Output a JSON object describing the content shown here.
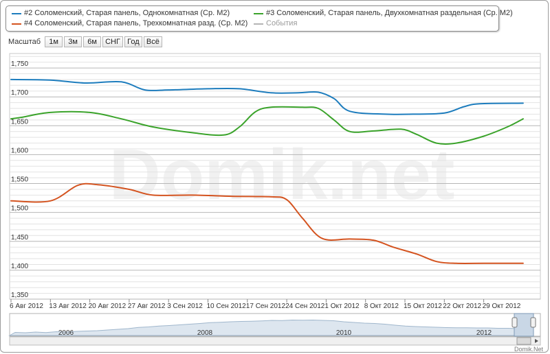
{
  "legend": {
    "items": [
      {
        "label": "#2 Соломенский, Старая панель, Однокомнатная (Ср. М2)",
        "color": "#1c7cbd"
      },
      {
        "label": "#3 Соломенский, Старая панель, Двухкомнатная раздельная (Ср. М2)",
        "color": "#3aa32a"
      },
      {
        "label": "#4 Соломенский, Старая панель, Трехкомнатная разд. (Ср. М2)",
        "color": "#d4531f"
      },
      {
        "label": "События",
        "color": "#b4b4b4"
      }
    ]
  },
  "zoom": {
    "label": "Масштаб",
    "buttons": [
      "1м",
      "3м",
      "6м",
      "СНГ",
      "Год",
      "Всё"
    ]
  },
  "watermark": "Domik.net",
  "credit": "Domik.Net",
  "navigator": {
    "years": [
      "2006",
      "2008",
      "2010",
      "2012"
    ]
  },
  "chart_data": {
    "type": "line",
    "x": [
      "6 Авг 2012",
      "13 Авг 2012",
      "20 Авг 2012",
      "27 Авг 2012",
      "3 Сен 2012",
      "10 Сен 2012",
      "17 Сен 2012",
      "24 Сен 2012",
      "1 Окт 2012",
      "8 Окт 2012",
      "15 Окт 2012",
      "22 Окт 2012",
      "29 Окт 2012"
    ],
    "ylim": [
      1350,
      1775
    ],
    "yticks": [
      1350,
      1400,
      1450,
      1500,
      1550,
      1600,
      1650,
      1700,
      1750
    ],
    "ytick_labels": [
      "1,350",
      "1,400",
      "1,450",
      "1,500",
      "1,550",
      "1,600",
      "1,650",
      "1,700",
      "1,750"
    ],
    "grid": true,
    "series": [
      {
        "name": "#2 Соломенский, Старая панель, Однокомнатная (Ср. М2)",
        "color": "#1c7cbd",
        "points": [
          [
            0,
            1730
          ],
          [
            1,
            1729
          ],
          [
            1.9,
            1724
          ],
          [
            2.8,
            1726
          ],
          [
            3.4,
            1712
          ],
          [
            4.0,
            1712
          ],
          [
            5.0,
            1714
          ],
          [
            5.8,
            1714
          ],
          [
            6.6,
            1707
          ],
          [
            7.3,
            1707
          ],
          [
            7.8,
            1708
          ],
          [
            8.2,
            1697
          ],
          [
            8.6,
            1675
          ],
          [
            9.5,
            1670
          ],
          [
            10.2,
            1670
          ],
          [
            11.0,
            1672
          ],
          [
            11.5,
            1683
          ],
          [
            11.9,
            1688
          ],
          [
            13.0,
            1689
          ]
        ]
      },
      {
        "name": "#3 Соломенский, Старая панель, Двухкомнатная раздельная (Ср. М2)",
        "color": "#3aa32a",
        "points": [
          [
            0,
            1662
          ],
          [
            0.3,
            1665
          ],
          [
            1.0,
            1673
          ],
          [
            2.0,
            1673
          ],
          [
            2.8,
            1662
          ],
          [
            3.6,
            1648
          ],
          [
            4.6,
            1638
          ],
          [
            5.4,
            1634
          ],
          [
            5.8,
            1648
          ],
          [
            6.2,
            1674
          ],
          [
            6.6,
            1682
          ],
          [
            7.4,
            1682
          ],
          [
            7.8,
            1680
          ],
          [
            8.2,
            1660
          ],
          [
            8.6,
            1640
          ],
          [
            9.2,
            1641
          ],
          [
            9.9,
            1644
          ],
          [
            10.3,
            1635
          ],
          [
            10.8,
            1620
          ],
          [
            11.3,
            1620
          ],
          [
            12.0,
            1632
          ],
          [
            12.6,
            1648
          ],
          [
            13.0,
            1662
          ]
        ]
      },
      {
        "name": "#4 Соломенский, Старая панель, Трехкомнатная разд. (Ср. М2)",
        "color": "#d4531f",
        "points": [
          [
            0,
            1520
          ],
          [
            1.0,
            1520
          ],
          [
            1.7,
            1547
          ],
          [
            2.2,
            1548
          ],
          [
            3.0,
            1540
          ],
          [
            3.6,
            1530
          ],
          [
            4.6,
            1530
          ],
          [
            5.6,
            1528
          ],
          [
            6.6,
            1527
          ],
          [
            7.0,
            1522
          ],
          [
            7.4,
            1490
          ],
          [
            7.9,
            1455
          ],
          [
            8.6,
            1454
          ],
          [
            9.2,
            1452
          ],
          [
            9.7,
            1440
          ],
          [
            10.3,
            1428
          ],
          [
            10.8,
            1415
          ],
          [
            11.3,
            1412
          ],
          [
            12.0,
            1412
          ],
          [
            13.0,
            1412
          ]
        ]
      }
    ]
  }
}
